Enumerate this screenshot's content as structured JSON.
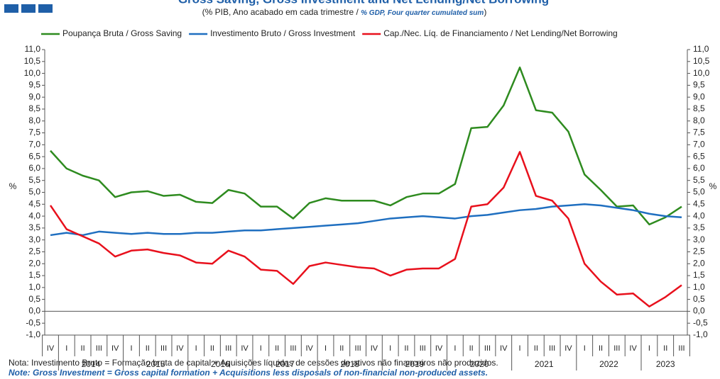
{
  "chart_data": {
    "type": "line",
    "title": "Gross Saving, Gross Investment and Net Lending/Net Borrowing",
    "subtitle": "(% PIB, Ano acabado em cada trimestre / ",
    "subtitle_en": "% GDP, Four quarter cumulated sum",
    "subtitle_end": ")",
    "ylabel": "%",
    "y2label": "%",
    "categories": [
      "IV",
      "I",
      "II",
      "III",
      "IV",
      "I",
      "II",
      "III",
      "IV",
      "I",
      "II",
      "III",
      "IV",
      "I",
      "II",
      "III",
      "IV",
      "I",
      "II",
      "III",
      "IV",
      "I",
      "II",
      "III",
      "IV",
      "I",
      "II",
      "III",
      "IV",
      "I",
      "II",
      "III",
      "IV",
      "I",
      "II",
      "III",
      "IV",
      "I",
      "II",
      "III"
    ],
    "years": [
      "2014",
      "2015",
      "2016",
      "2017",
      "2018",
      "2019",
      "2020",
      "2021",
      "2022",
      "2023"
    ],
    "series": [
      {
        "name": "Poupança Bruta / Gross Saving",
        "color": "#2e8b1f",
        "values": [
          6.75,
          6.0,
          5.7,
          5.5,
          4.8,
          5.0,
          5.05,
          4.85,
          4.9,
          4.6,
          4.55,
          5.1,
          4.95,
          4.4,
          4.4,
          3.9,
          4.55,
          4.75,
          4.65,
          4.65,
          4.65,
          4.45,
          4.8,
          4.95,
          4.95,
          5.35,
          7.7,
          7.75,
          8.65,
          10.25,
          8.45,
          8.35,
          7.55,
          5.75,
          5.1,
          4.4,
          4.45,
          3.65,
          3.95,
          4.4
        ]
      },
      {
        "name": "Investimento Bruto / Gross Investment",
        "color": "#1f6fc0",
        "values": [
          3.2,
          3.3,
          3.2,
          3.35,
          3.3,
          3.25,
          3.3,
          3.25,
          3.25,
          3.3,
          3.3,
          3.35,
          3.4,
          3.4,
          3.45,
          3.5,
          3.55,
          3.6,
          3.65,
          3.7,
          3.8,
          3.9,
          3.95,
          4.0,
          3.95,
          3.9,
          4.0,
          4.05,
          4.15,
          4.25,
          4.3,
          4.4,
          4.45,
          4.5,
          4.45,
          4.35,
          4.25,
          4.1,
          4.0,
          3.95
        ]
      },
      {
        "name": "Cap./Nec. Líq. de Financiamento / Net Lending/Net Borrowing",
        "color": "#e8101c",
        "values": [
          4.45,
          3.45,
          3.15,
          2.85,
          2.3,
          2.55,
          2.6,
          2.45,
          2.35,
          2.05,
          2.0,
          2.55,
          2.3,
          1.75,
          1.7,
          1.15,
          1.9,
          2.05,
          1.95,
          1.85,
          1.8,
          1.5,
          1.75,
          1.8,
          1.8,
          2.2,
          4.4,
          4.5,
          5.2,
          6.7,
          4.85,
          4.65,
          3.9,
          2.0,
          1.25,
          0.7,
          0.75,
          0.2,
          0.6,
          1.1
        ]
      }
    ],
    "ylim": [
      -1,
      11
    ],
    "yticks": [
      {
        "value": 11,
        "label": "11,0"
      },
      {
        "value": 10.5,
        "label": "10,5"
      },
      {
        "value": 10,
        "label": "10,0"
      },
      {
        "value": 9.5,
        "label": "9,5"
      },
      {
        "value": 9,
        "label": "9,0"
      },
      {
        "value": 8.5,
        "label": "8,5"
      },
      {
        "value": 8,
        "label": "8,0"
      },
      {
        "value": 7.5,
        "label": "7,5"
      },
      {
        "value": 7,
        "label": "7,0"
      },
      {
        "value": 6.5,
        "label": "6,5"
      },
      {
        "value": 6,
        "label": "6,0"
      },
      {
        "value": 5.5,
        "label": "5,5"
      },
      {
        "value": 5,
        "label": "5,0"
      },
      {
        "value": 4.5,
        "label": "4,5"
      },
      {
        "value": 4,
        "label": "4,0"
      },
      {
        "value": 3.5,
        "label": "3,5"
      },
      {
        "value": 3,
        "label": "3,0"
      },
      {
        "value": 2.5,
        "label": "2,5"
      },
      {
        "value": 2,
        "label": "2,0"
      },
      {
        "value": 1.5,
        "label": "1,5"
      },
      {
        "value": 1,
        "label": "1,0"
      },
      {
        "value": 0.5,
        "label": "0,5"
      },
      {
        "value": 0,
        "label": "0,0"
      },
      {
        "value": -0.5,
        "label": "-0,5"
      },
      {
        "value": -1,
        "label": "-1,0"
      }
    ],
    "y2lim": [
      -1,
      11
    ],
    "y2ticks": [
      {
        "value": 11,
        "label": "11,0"
      },
      {
        "value": 10.5,
        "label": "10,5"
      },
      {
        "value": 10,
        "label": "10,0"
      },
      {
        "value": 9.5,
        "label": "9,5"
      },
      {
        "value": 9,
        "label": "9,0"
      },
      {
        "value": 8.5,
        "label": "8,5"
      },
      {
        "value": 8,
        "label": "8,0"
      },
      {
        "value": 7.5,
        "label": "7,5"
      },
      {
        "value": 7,
        "label": "7,0"
      },
      {
        "value": 6.5,
        "label": "6,5"
      },
      {
        "value": 6,
        "label": "6,0"
      },
      {
        "value": 5.5,
        "label": "5,5"
      },
      {
        "value": 5,
        "label": "5,0"
      },
      {
        "value": 4.5,
        "label": "4,5"
      },
      {
        "value": 4,
        "label": "4,0"
      },
      {
        "value": 3.5,
        "label": "3,5"
      },
      {
        "value": 3,
        "label": "3,0"
      },
      {
        "value": 2.5,
        "label": "2,5"
      },
      {
        "value": 2,
        "label": "2,0"
      },
      {
        "value": 1.5,
        "label": "1,5"
      },
      {
        "value": 1,
        "label": "1,0"
      },
      {
        "value": 0.5,
        "label": "0,5"
      },
      {
        "value": 0,
        "label": "0,0"
      },
      {
        "value": -0.5,
        "label": "-0,5"
      },
      {
        "value": -1,
        "label": "-1,0"
      }
    ],
    "legend": "top",
    "note_pt": "Nota: Investimento Bruto = Formação bruta de capital + Aquisições líquidas de cessões de ativos não financeiros não produzidos.",
    "note_en": "Note: Gross Investment = Gross capital formation + Acquisitions less disposals of  non-financial non-produced assets."
  }
}
